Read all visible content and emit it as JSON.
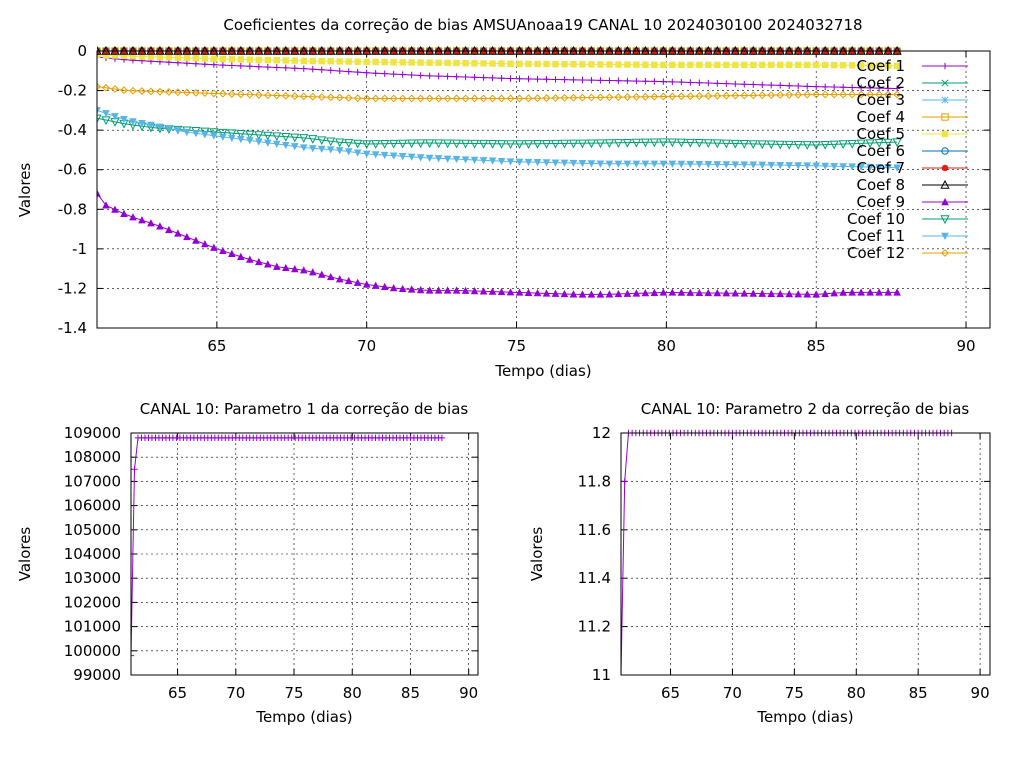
{
  "chart_data": [
    {
      "type": "line",
      "title": "Coeficientes da correção de bias AMSUAnoaa19 CANAL 10 2024030100 2024032718",
      "xlabel": "Tempo (dias)",
      "ylabel": "Valores",
      "xlim": [
        61,
        90.8
      ],
      "ylim": [
        -1.4,
        0
      ],
      "xticks": [
        65,
        70,
        75,
        80,
        85,
        90
      ],
      "xtick_labels": [
        "65",
        "70",
        "75",
        "80",
        "85",
        "90"
      ],
      "yticks": [
        -1.4,
        -1.2,
        -1,
        -0.8,
        -0.6,
        -0.4,
        -0.2,
        0
      ],
      "ytick_labels": [
        "-1.4",
        "-1.2",
        "-1",
        "-0.8",
        "-0.6",
        "-0.4",
        "-0.2",
        "0"
      ],
      "grid": true,
      "legend_position": "right",
      "series": [
        {
          "name": "Coef 1",
          "color": "#9400d3",
          "marker": "plus",
          "x": [
            61,
            62,
            65,
            68,
            70,
            72,
            75,
            80,
            85,
            87.75
          ],
          "y": [
            -0.03,
            -0.045,
            -0.07,
            -0.09,
            -0.11,
            -0.125,
            -0.14,
            -0.155,
            -0.18,
            -0.19
          ]
        },
        {
          "name": "Coef 2",
          "color": "#009e73",
          "marker": "x",
          "x": [
            61,
            87.75
          ],
          "y": [
            0,
            0
          ]
        },
        {
          "name": "Coef 3",
          "color": "#56b4e9",
          "marker": "star",
          "x": [
            61,
            87.75
          ],
          "y": [
            0,
            0
          ]
        },
        {
          "name": "Coef 4",
          "color": "#e69f00",
          "marker": "square-open",
          "x": [
            61,
            87.75
          ],
          "y": [
            0,
            0
          ]
        },
        {
          "name": "Coef 5",
          "color": "#f0e442",
          "marker": "square-filled",
          "x": [
            61,
            63,
            65,
            68,
            70,
            75,
            80,
            85,
            87.75
          ],
          "y": [
            -0.02,
            -0.03,
            -0.04,
            -0.05,
            -0.055,
            -0.065,
            -0.07,
            -0.07,
            -0.075
          ]
        },
        {
          "name": "Coef 6",
          "color": "#0072b2",
          "marker": "circle-open",
          "x": [
            61,
            87.75
          ],
          "y": [
            0,
            0
          ]
        },
        {
          "name": "Coef 7",
          "color": "#e51e10",
          "marker": "circle-filled",
          "x": [
            61,
            87.75
          ],
          "y": [
            0,
            0
          ]
        },
        {
          "name": "Coef 8",
          "color": "#000000",
          "marker": "triangle-up-open",
          "x": [
            61,
            87.75
          ],
          "y": [
            0,
            0
          ]
        },
        {
          "name": "Coef 9",
          "color": "#9400d3",
          "marker": "triangle-up-filled",
          "x": [
            61,
            61.3,
            62,
            63,
            64,
            65,
            66,
            67,
            68,
            69,
            70,
            71,
            72,
            73,
            75,
            77,
            78,
            80,
            85,
            86,
            87.75
          ],
          "y": [
            -0.72,
            -0.78,
            -0.83,
            -0.88,
            -0.94,
            -1.0,
            -1.05,
            -1.09,
            -1.11,
            -1.15,
            -1.18,
            -1.2,
            -1.21,
            -1.21,
            -1.22,
            -1.23,
            -1.23,
            -1.22,
            -1.23,
            -1.22,
            -1.22
          ]
        },
        {
          "name": "Coef 10",
          "color": "#009e73",
          "marker": "triangle-down-open",
          "x": [
            61,
            62,
            63,
            64,
            65,
            66,
            67,
            68,
            69,
            70,
            72,
            75,
            78,
            80,
            83,
            85,
            87.75
          ],
          "y": [
            -0.34,
            -0.37,
            -0.39,
            -0.4,
            -0.41,
            -0.42,
            -0.43,
            -0.44,
            -0.46,
            -0.47,
            -0.465,
            -0.47,
            -0.465,
            -0.46,
            -0.47,
            -0.475,
            -0.46
          ]
        },
        {
          "name": "Coef 11",
          "color": "#56b4e9",
          "marker": "triangle-down-filled",
          "x": [
            61,
            62,
            63,
            64,
            65,
            66,
            67,
            68,
            69,
            70,
            72,
            75,
            78,
            80,
            83,
            85,
            87.75
          ],
          "y": [
            -0.3,
            -0.35,
            -0.38,
            -0.41,
            -0.43,
            -0.45,
            -0.47,
            -0.49,
            -0.5,
            -0.52,
            -0.54,
            -0.56,
            -0.57,
            -0.57,
            -0.575,
            -0.58,
            -0.59
          ]
        },
        {
          "name": "Coef 12",
          "color": "#e69f00",
          "marker": "diamond-open",
          "x": [
            61,
            62,
            64,
            66,
            68,
            70,
            75,
            80,
            85,
            87.75
          ],
          "y": [
            -0.18,
            -0.2,
            -0.21,
            -0.22,
            -0.23,
            -0.24,
            -0.24,
            -0.23,
            -0.22,
            -0.22
          ]
        }
      ]
    },
    {
      "type": "line",
      "title": "CANAL 10: Parametro 1 da correção de bias",
      "xlabel": "Tempo (dias)",
      "ylabel": "Valores",
      "xlim": [
        61,
        90.8
      ],
      "ylim": [
        99000,
        109000
      ],
      "xticks": [
        65,
        70,
        75,
        80,
        85,
        90
      ],
      "xtick_labels": [
        "65",
        "70",
        "75",
        "80",
        "85",
        "90"
      ],
      "yticks": [
        99000,
        100000,
        101000,
        102000,
        103000,
        104000,
        105000,
        106000,
        107000,
        108000,
        109000
      ],
      "ytick_labels": [
        "99000",
        "100000",
        "101000",
        "102000",
        "103000",
        "104000",
        "105000",
        "106000",
        "107000",
        "108000",
        "109000"
      ],
      "grid": true,
      "series": [
        {
          "color": "#9400d3",
          "marker": "plus",
          "x": [
            61,
            61.1,
            61.3,
            61.5,
            62,
            65,
            70,
            75,
            80,
            85,
            87.75
          ],
          "y": [
            99800,
            101000,
            107500,
            108800,
            108800,
            108800,
            108800,
            108800,
            108800,
            108800,
            108800
          ]
        }
      ]
    },
    {
      "type": "line",
      "title": "CANAL 10: Parametro 2 da correção de bias",
      "xlabel": "Tempo (dias)",
      "ylabel": "Valores",
      "xlim": [
        61,
        90.8
      ],
      "ylim": [
        11,
        12
      ],
      "xticks": [
        65,
        70,
        75,
        80,
        85,
        90
      ],
      "xtick_labels": [
        "65",
        "70",
        "75",
        "80",
        "85",
        "90"
      ],
      "yticks": [
        11,
        11.2,
        11.4,
        11.6,
        11.8,
        12
      ],
      "ytick_labels": [
        "11",
        "11.2",
        "11.4",
        "11.6",
        "11.8",
        "12"
      ],
      "grid": true,
      "series": [
        {
          "color": "#9400d3",
          "marker": "plus",
          "x": [
            61,
            61.1,
            61.2,
            61.3,
            61.5,
            62,
            65,
            70,
            75,
            80,
            85,
            87.75
          ],
          "y": [
            11.0,
            11.2,
            11.5,
            11.8,
            12.0,
            12.0,
            12.0,
            12.0,
            12.0,
            12.0,
            12.0,
            12.0
          ]
        }
      ]
    }
  ]
}
